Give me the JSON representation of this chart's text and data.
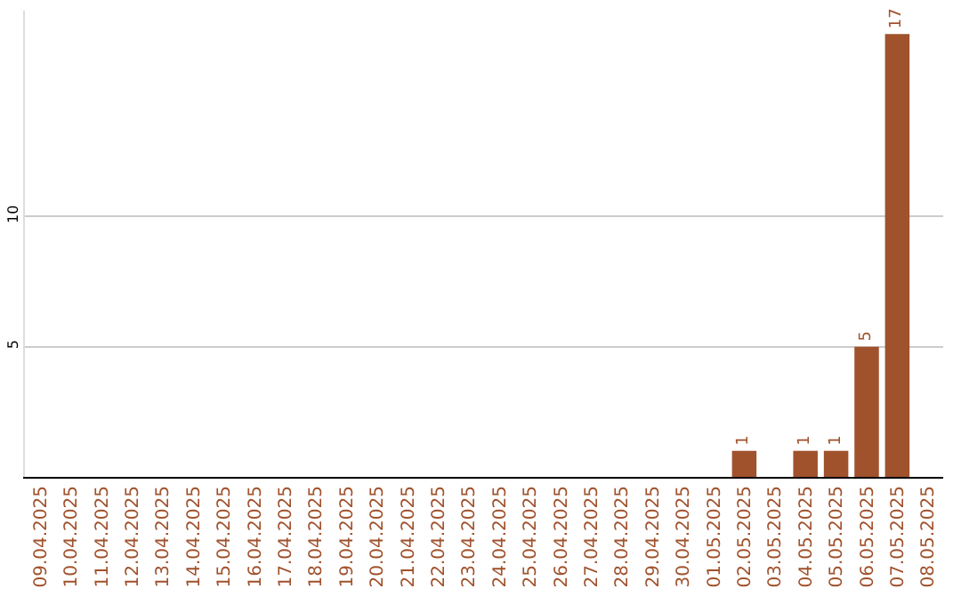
{
  "chart_data": {
    "type": "bar",
    "categories": [
      "09.04.2025",
      "10.04.2025",
      "11.04.2025",
      "12.04.2025",
      "13.04.2025",
      "14.04.2025",
      "15.04.2025",
      "16.04.2025",
      "17.04.2025",
      "18.04.2025",
      "19.04.2025",
      "20.04.2025",
      "21.04.2025",
      "22.04.2025",
      "23.04.2025",
      "24.04.2025",
      "25.04.2025",
      "26.04.2025",
      "27.04.2025",
      "28.04.2025",
      "29.04.2025",
      "30.04.2025",
      "01.05.2025",
      "02.05.2025",
      "03.05.2025",
      "04.05.2025",
      "05.05.2025",
      "06.05.2025",
      "07.05.2025",
      "08.05.2025"
    ],
    "values": [
      0,
      0,
      0,
      0,
      0,
      0,
      0,
      0,
      0,
      0,
      0,
      0,
      0,
      0,
      0,
      0,
      0,
      0,
      0,
      0,
      0,
      0,
      0,
      1,
      0,
      1,
      1,
      5,
      17,
      0
    ],
    "value_labels": [
      null,
      null,
      null,
      null,
      null,
      null,
      null,
      null,
      null,
      null,
      null,
      null,
      null,
      null,
      null,
      null,
      null,
      null,
      null,
      null,
      null,
      null,
      null,
      "1",
      null,
      "1",
      "1",
      "5",
      "17",
      null
    ],
    "color": "#a0522d",
    "ylim": [
      0,
      17.9
    ],
    "yticks": [
      5,
      10
    ],
    "grid": "y",
    "legend": false
  }
}
